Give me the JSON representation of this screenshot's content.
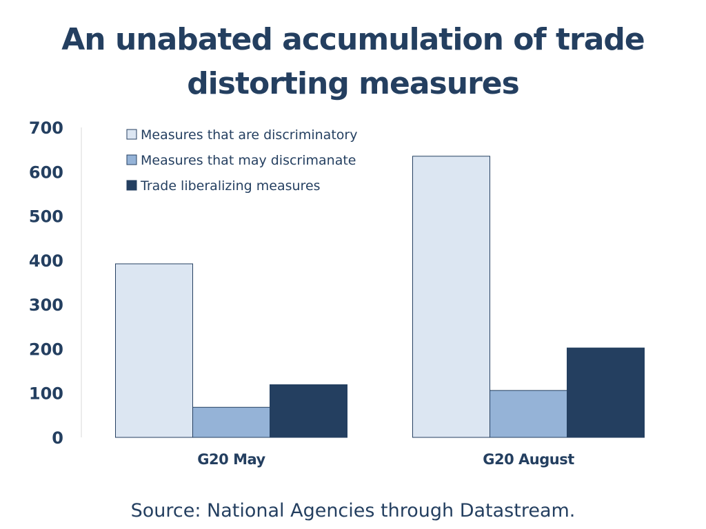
{
  "slide": {
    "title": "An unabated accumulation of trade distorting measures",
    "source": "Source:  National Agencies through Datastream."
  },
  "colors": {
    "text": "#243f60",
    "bar_outline": "#243f60",
    "axis_line": "#d9d9d9"
  },
  "chart_data": {
    "type": "bar",
    "title": "",
    "xlabel": "",
    "ylabel": "",
    "categories": [
      "G20 May",
      "G20 August"
    ],
    "series": [
      {
        "name": "Measures that are discriminatory",
        "values": [
          392,
          635
        ],
        "color": "#dce6f2"
      },
      {
        "name": "Measures that may discrimanate",
        "values": [
          68,
          106
        ],
        "color": "#95b3d7"
      },
      {
        "name": "Trade liberalizing measures",
        "values": [
          119,
          202
        ],
        "color": "#243f60"
      }
    ],
    "ylim": [
      0,
      700
    ],
    "yticks": [
      0,
      100,
      200,
      300,
      400,
      500,
      600,
      700
    ],
    "grid": false,
    "legend_position": "top-left"
  }
}
